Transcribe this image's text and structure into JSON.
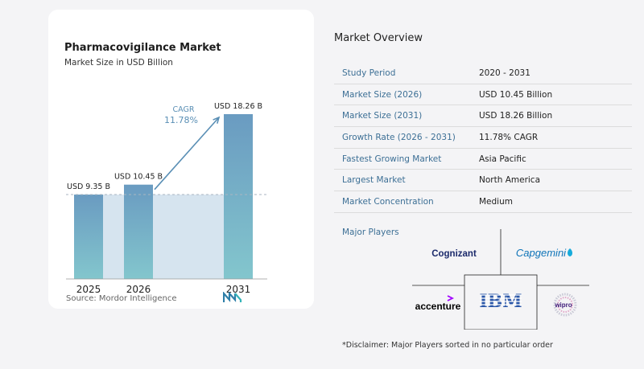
{
  "left": {
    "title": "Pharmacovigilance Market",
    "subtitle": "Market Size in USD Billion",
    "source": "Source:  Mordor Intelligence"
  },
  "chart_data": {
    "type": "bar",
    "categories": [
      "2025",
      "2026",
      "2031"
    ],
    "values": [
      9.35,
      10.45,
      18.26
    ],
    "data_labels": [
      "USD 9.35 B",
      "USD 10.45 B",
      "USD 18.26 B"
    ],
    "title": "Pharmacovigilance Market",
    "subtitle": "Market Size in USD Billion",
    "cagr_label": "CAGR",
    "cagr_value": "11.78%",
    "ylim": [
      0,
      18.26
    ],
    "grid": false,
    "colors": {
      "bar_top": "#6a9bc1",
      "bar_bottom": "#83c6cd",
      "shade": "#d6e4ef",
      "arrow": "#5a8fb5",
      "cagr_text": "#5a8fb5"
    }
  },
  "overview": {
    "title": "Market Overview",
    "rows": [
      {
        "label": "Study Period",
        "value": "2020 - 2031"
      },
      {
        "label": "Market Size (2026)",
        "value": "USD 10.45 Billion"
      },
      {
        "label": "Market Size (2031)",
        "value": "USD 18.26 Billion"
      },
      {
        "label": "Growth Rate (2026 - 2031)",
        "value": "11.78% CAGR"
      },
      {
        "label": "Fastest Growing Market",
        "value": "Asia Pacific"
      },
      {
        "label": "Largest Market",
        "value": "North America"
      },
      {
        "label": "Market Concentration",
        "value": "Medium"
      }
    ]
  },
  "players": {
    "title": "Major Players",
    "names": [
      "Cognizant",
      "Capgemini",
      "accenture",
      "IBM",
      "wipro"
    ],
    "disclaimer": "*Disclaimer: Major Players sorted in no particular order"
  }
}
